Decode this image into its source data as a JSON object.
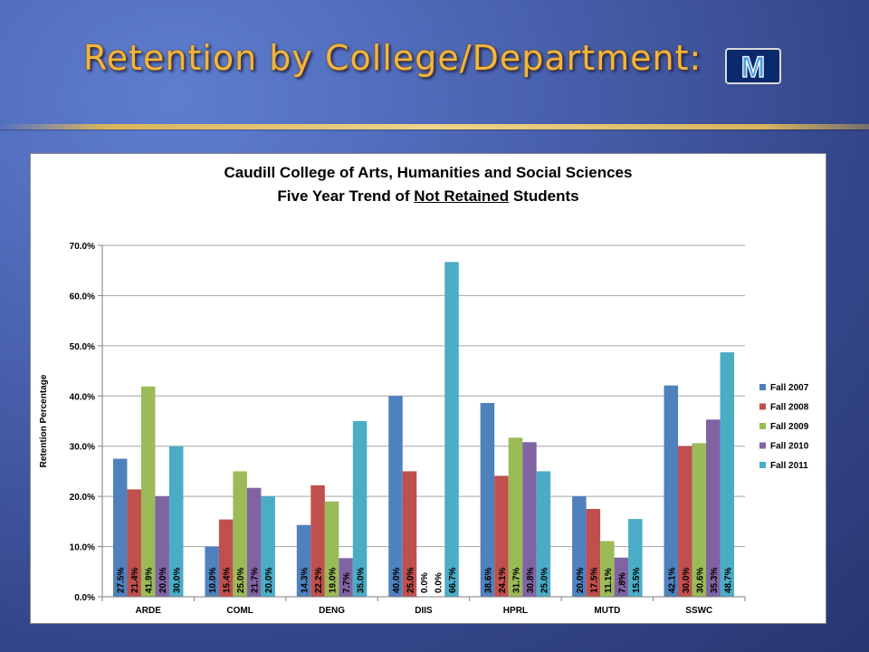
{
  "slide": {
    "title": "Retention by College/Department:",
    "logo_letter": "M"
  },
  "chart_data": {
    "type": "bar",
    "title_line1": "Caudill College of Arts, Humanities and Social Sciences",
    "title_line2_before": "Five Year Trend of ",
    "title_line2_underlined": "Not Retained",
    "title_line2_after": " Students",
    "ylabel": "Retention Percentage",
    "xlabel": "",
    "ylim": [
      0,
      70
    ],
    "ytick_values": [
      0,
      10,
      20,
      30,
      40,
      50,
      60,
      70
    ],
    "ytick_labels": [
      "0.0%",
      "10.0%",
      "20.0%",
      "30.0%",
      "40.0%",
      "50.0%",
      "60.0%",
      "70.0%"
    ],
    "grid": true,
    "legend_position": "right",
    "categories": [
      "ARDE",
      "COML",
      "DENG",
      "DIIS",
      "HPRL",
      "MUTD",
      "SSWC"
    ],
    "series": [
      {
        "name": "Fall 2007",
        "color": "#4f81bd",
        "values": [
          27.5,
          10.0,
          14.3,
          40.0,
          38.6,
          20.0,
          42.1
        ],
        "labels": [
          "27.5%",
          "10.0%",
          "14.3%",
          "40.0%",
          "38.6%",
          "20.0%",
          "42.1%"
        ]
      },
      {
        "name": "Fall 2008",
        "color": "#c0504d",
        "values": [
          21.4,
          15.4,
          22.2,
          25.0,
          24.1,
          17.5,
          30.0
        ],
        "labels": [
          "21.4%",
          "15.4%",
          "22.2%",
          "25.0%",
          "24.1%",
          "17.5%",
          "30.0%"
        ]
      },
      {
        "name": "Fall 2009",
        "color": "#9bbb59",
        "values": [
          41.9,
          25.0,
          19.0,
          0.0,
          31.7,
          11.1,
          30.6
        ],
        "labels": [
          "41.9%",
          "25.0%",
          "19.0%",
          "0.0%",
          "31.7%",
          "11.1%",
          "30.6%"
        ]
      },
      {
        "name": "Fall 2010",
        "color": "#8064a2",
        "values": [
          20.0,
          21.7,
          7.7,
          0.0,
          30.8,
          7.8,
          35.3
        ],
        "labels": [
          "20.0%",
          "21.7%",
          "7.7%",
          "0.0%",
          "30.8%",
          "7.8%",
          "35.3%"
        ]
      },
      {
        "name": "Fall 2011",
        "color": "#4bacc6",
        "values": [
          30.0,
          20.0,
          35.0,
          66.7,
          25.0,
          15.5,
          48.7
        ],
        "labels": [
          "30.0%",
          "20.0%",
          "35.0%",
          "66.7%",
          "25.0%",
          "15.5%",
          "48.7%"
        ]
      }
    ]
  }
}
